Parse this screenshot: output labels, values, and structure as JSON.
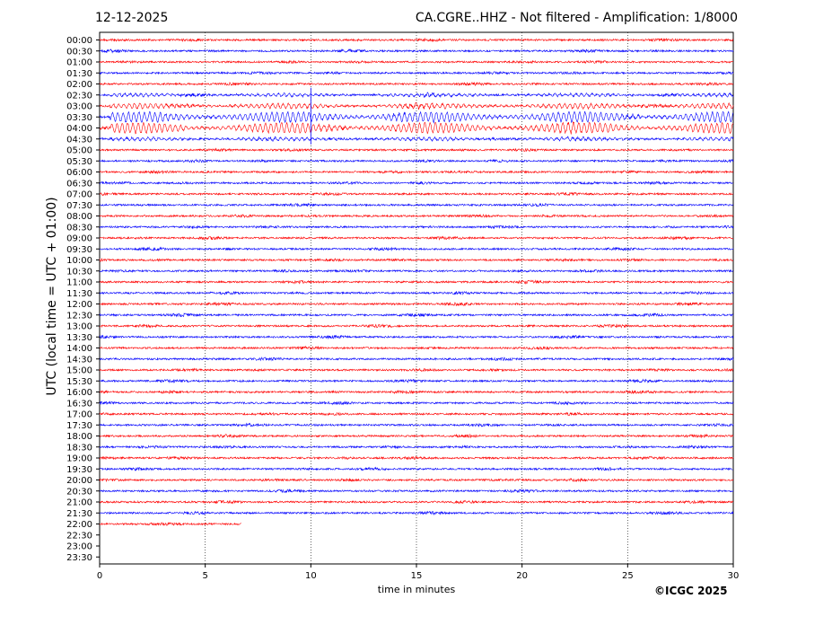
{
  "header": {
    "date": "12-12-2025",
    "title": "CA.CGRE..HHZ - Not filtered - Amplification: 1/8000"
  },
  "footer": {
    "copyright": "©ICGC 2025"
  },
  "chart_data": {
    "type": "line",
    "xlabel": "time in minutes",
    "ylabel": "UTC (local time = UTC + 01:00)",
    "xlim": [
      0,
      30
    ],
    "x_ticks": [
      0,
      5,
      10,
      15,
      20,
      25,
      30
    ],
    "grid": "vertical dotted lines at x ticks",
    "row_labels": [
      "00:00",
      "00:30",
      "01:00",
      "01:30",
      "02:00",
      "02:30",
      "03:00",
      "03:30",
      "04:00",
      "04:30",
      "05:00",
      "05:30",
      "06:00",
      "06:30",
      "07:00",
      "07:30",
      "08:00",
      "08:30",
      "09:00",
      "09:30",
      "10:00",
      "10:30",
      "11:00",
      "11:30",
      "12:00",
      "12:30",
      "13:00",
      "13:30",
      "14:00",
      "14:30",
      "15:00",
      "15:30",
      "16:00",
      "16:30",
      "17:00",
      "17:30",
      "18:00",
      "18:30",
      "19:00",
      "19:30",
      "20:00",
      "20:30",
      "21:00",
      "21:30",
      "22:00",
      "22:30",
      "23:00",
      "23:30"
    ],
    "trace_colors": [
      "#ff0000",
      "#0000ff"
    ],
    "last_trace_end_minute": 6.7,
    "event": {
      "rows": [
        "02:30",
        "03:00",
        "03:30",
        "04:00",
        "04:30"
      ],
      "start_minute": 0.5,
      "spike_minute": 10.0
    }
  }
}
